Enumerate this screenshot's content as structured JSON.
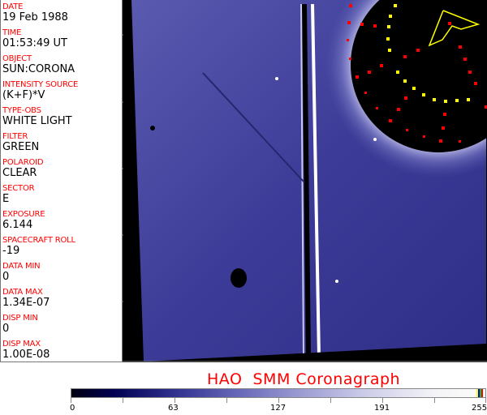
{
  "fields": [
    {
      "label": "DATE",
      "value": "19 Feb 1988"
    },
    {
      "label": "TIME",
      "value": "01:53:49 UT"
    },
    {
      "label": "OBJECT",
      "value": "SUN:CORONA"
    },
    {
      "label": "INTENSITY SOURCE",
      "value": "(K+F)*V"
    },
    {
      "label": "TYPE-OBS",
      "value": "WHITE LIGHT"
    },
    {
      "label": "FILTER",
      "value": "GREEN"
    },
    {
      "label": "POLAROID",
      "value": "CLEAR"
    },
    {
      "label": "SECTOR",
      "value": "E"
    },
    {
      "label": "EXPOSURE",
      "value": "6.144"
    },
    {
      "label": "SPACECRAFT ROLL",
      "value": "-19"
    },
    {
      "label": "DATA MIN",
      "value": "0"
    },
    {
      "label": "DATA MAX",
      "value": "1.34E-07"
    },
    {
      "label": "DISP MIN",
      "value": "0"
    },
    {
      "label": "DISP MAX",
      "value": "1.00E-08"
    }
  ],
  "title": "HAO  SMM Coronagraph",
  "colorbar": {
    "ticks": [
      "0",
      "63",
      "127",
      "191",
      "255"
    ],
    "colormap": [
      "#000010",
      "#000050",
      "#6666b8",
      "#fafafa"
    ],
    "marker_colors": [
      "#ffff00",
      "#0000ff",
      "#00c000",
      "#ff0000"
    ]
  },
  "label_color": "#ff0000"
}
